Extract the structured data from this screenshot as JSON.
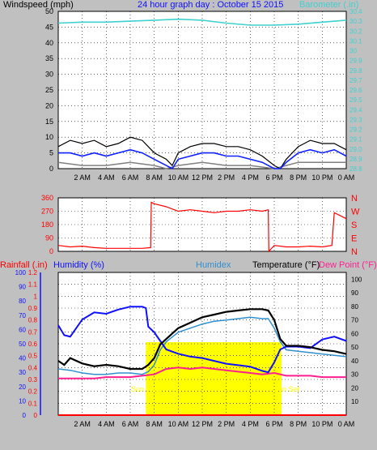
{
  "header": {
    "wind_label": "Windspeed (mph)",
    "day_title": "24 hour graph day : October 15 2015",
    "baro_label": "Barometer (.in)"
  },
  "labels2": {
    "rain": "Rainfall (.in)",
    "humidity": "Humidity (%)",
    "humidex": "Humidex",
    "temperature": "Temperature (°F)",
    "dewpoint": "Dew Point (°F)",
    "sunrise": "Sun Rise",
    "sunset": "Sun Set"
  },
  "colors": {
    "background": "#c0c0c0",
    "plot_bg": "#ffffff",
    "wind_gust": "#000000",
    "wind_avg": "#1020ff",
    "wind_min": "#808080",
    "barometer": "#40d0d0",
    "direction": "#ff0000",
    "temperature": "#000000",
    "humidity": "#1010ff",
    "humidex": "#3090d0",
    "dewpoint": "#ff2090",
    "sunlight": "#ffff00",
    "rain": "#ff0000"
  },
  "chart_data": [
    {
      "id": "wind",
      "type": "line",
      "left_axis": {
        "label": "Windspeed (mph)",
        "ylim": [
          0,
          50
        ],
        "ticks": [
          0,
          5,
          10,
          15,
          20,
          25,
          30,
          35,
          40,
          45,
          50
        ]
      },
      "right_axis": {
        "label": "Barometer (.in)",
        "ylim": [
          28.8,
          30.4
        ],
        "ticks": [
          "28.8",
          "28.9",
          "29.0",
          "29.1",
          "29.2",
          "29.3",
          "29.4",
          "29.5",
          "29.6",
          "29.7",
          "29.8",
          "29.9",
          "30",
          "30.1",
          "30.2",
          "30.3",
          "30.4"
        ]
      },
      "xlim": [
        0,
        24
      ],
      "xticks": [
        "2 AM",
        "4 AM",
        "6 AM",
        "8 AM",
        "10 AM",
        "12 PM",
        "2 PM",
        "4 PM",
        "6 PM",
        "8 PM",
        "10 PM",
        "0 AM"
      ],
      "grid": true,
      "series": [
        {
          "key": "gust",
          "x": [
            0,
            1,
            2,
            3,
            4,
            5,
            6,
            7,
            8,
            9,
            9.5,
            10,
            11,
            12,
            13,
            14,
            15,
            16,
            17,
            18,
            18.5,
            19,
            20,
            21,
            22,
            23,
            24
          ],
          "y": [
            7,
            9,
            8,
            9,
            7,
            8,
            10,
            9,
            5,
            3,
            1,
            5,
            7,
            8,
            8,
            7,
            7,
            6,
            4,
            1,
            0,
            3,
            7,
            9,
            8,
            8,
            6
          ]
        },
        {
          "key": "avg",
          "x": [
            0,
            1,
            2,
            3,
            4,
            5,
            6,
            7,
            8,
            9,
            9.5,
            10,
            11,
            12,
            13,
            14,
            15,
            16,
            17,
            18,
            18.5,
            19,
            20,
            21,
            22,
            23,
            24
          ],
          "y": [
            5,
            5,
            4,
            5,
            4,
            5,
            6,
            5,
            3,
            1,
            0,
            3,
            4,
            5,
            5,
            4,
            4,
            3,
            2,
            0,
            0,
            2,
            5,
            6,
            5,
            6,
            4
          ]
        },
        {
          "key": "min",
          "x": [
            0,
            2,
            4,
            6,
            8,
            9,
            10,
            12,
            14,
            16,
            18,
            19,
            20,
            22,
            24
          ],
          "y": [
            2,
            1,
            1,
            2,
            1,
            0,
            1,
            2,
            1,
            1,
            0,
            1,
            2,
            2,
            2
          ]
        },
        {
          "key": "baro",
          "axis": "right",
          "x": [
            0,
            2,
            4,
            6,
            8,
            10,
            12,
            14,
            16,
            18,
            20,
            22,
            24
          ],
          "y": [
            30.28,
            30.29,
            30.29,
            30.3,
            30.31,
            30.32,
            30.31,
            30.28,
            30.26,
            30.26,
            30.27,
            30.29,
            30.31
          ]
        }
      ]
    },
    {
      "id": "direction",
      "type": "line",
      "left_axis": {
        "ylim": [
          0,
          360
        ],
        "ticks": [
          0,
          45,
          90,
          135,
          180,
          225,
          270,
          315,
          360
        ]
      },
      "right_axis": {
        "ticks": [
          "N",
          "S",
          "E",
          "S",
          "N"
        ],
        "top_to_bottom": [
          "N",
          "W",
          "S",
          "E",
          "N"
        ]
      },
      "xlim": [
        0,
        24
      ],
      "grid": true,
      "series": [
        {
          "key": "dir",
          "x": [
            0,
            1,
            2,
            3,
            4,
            5,
            6,
            7,
            7.7,
            7.75,
            8,
            9,
            10,
            11,
            12,
            13,
            14,
            15,
            16,
            17,
            17.5,
            17.55,
            18,
            19,
            20,
            21,
            22,
            22.8,
            23,
            24
          ],
          "y": [
            40,
            30,
            35,
            25,
            20,
            20,
            20,
            20,
            25,
            330,
            320,
            300,
            270,
            280,
            270,
            260,
            270,
            270,
            280,
            270,
            280,
            0,
            40,
            30,
            30,
            35,
            30,
            40,
            260,
            220
          ]
        }
      ]
    },
    {
      "id": "temperature",
      "type": "line",
      "left_axis": {
        "label": "Rainfall (.in)",
        "ylim": [
          0,
          1.2
        ],
        "ticks": [
          "0",
          "0.1",
          "0.2",
          "0.3",
          "0.4",
          "0.5",
          "0.6",
          "0.7",
          "0.8",
          "0.9",
          "1",
          "1.1",
          "1.2"
        ]
      },
      "left_axis2": {
        "label": "Humidity (%)",
        "ylim": [
          0,
          100
        ],
        "ticks": [
          "0",
          "10",
          "20",
          "30",
          "40",
          "50",
          "60",
          "70",
          "80",
          "90",
          "100"
        ]
      },
      "right_axis": {
        "label": "Temperature (°F)",
        "ylim": [
          0,
          105
        ],
        "ticks": [
          "10",
          "20",
          "30",
          "40",
          "50",
          "60",
          "70",
          "80",
          "90",
          "100"
        ]
      },
      "xlim": [
        0,
        24
      ],
      "xticks": [
        "2 AM",
        "4 AM",
        "6 AM",
        "8 AM",
        "10 AM",
        "12 PM",
        "2 PM",
        "4 PM",
        "6 PM",
        "8 PM",
        "10 PM",
        "0 AM"
      ],
      "grid": true,
      "sunrise_hour": 7.3,
      "sunset_hour": 18.6,
      "series": [
        {
          "key": "temp",
          "axis": "right",
          "x": [
            0,
            0.5,
            1,
            2,
            3,
            4,
            5,
            6,
            7,
            7.5,
            8,
            8.5,
            9,
            10,
            11,
            12,
            13,
            14,
            15,
            16,
            17,
            17.5,
            18,
            18.5,
            19,
            20,
            21,
            22,
            23,
            24
          ],
          "y": [
            40,
            37,
            42,
            38,
            36,
            37,
            36,
            34,
            34,
            37,
            42,
            52,
            56,
            64,
            68,
            72,
            74,
            76,
            77,
            78,
            78,
            77,
            70,
            56,
            51,
            51,
            50,
            48,
            47,
            45
          ]
        },
        {
          "key": "hum",
          "axis": "left2",
          "x": [
            0,
            0.5,
            1,
            2,
            3,
            4,
            5,
            6,
            7,
            7.3,
            7.5,
            8,
            8.5,
            9,
            10,
            11,
            12,
            13,
            14,
            15,
            16,
            17,
            17.5,
            18,
            18.5,
            19,
            20,
            21,
            22,
            23,
            24
          ],
          "y": [
            63,
            56,
            55,
            67,
            72,
            71,
            74,
            76,
            76,
            75,
            62,
            58,
            52,
            46,
            43,
            41,
            40,
            38,
            36,
            35,
            34,
            31,
            30,
            37,
            46,
            48,
            48,
            47,
            53,
            55,
            52
          ]
        },
        {
          "key": "humidex",
          "axis": "right",
          "x": [
            0,
            1,
            2,
            3,
            4,
            5,
            6,
            7,
            7.5,
            8,
            8.5,
            9,
            10,
            11,
            12,
            13,
            14,
            15,
            16,
            17,
            17.5,
            18,
            18.5,
            19,
            20,
            21,
            22,
            23,
            24
          ],
          "y": [
            34,
            33,
            31,
            30,
            30,
            31,
            31,
            30,
            32,
            37,
            48,
            54,
            61,
            64,
            67,
            69,
            70,
            71,
            72,
            71,
            71,
            64,
            54,
            48,
            47,
            46,
            45,
            44,
            43
          ]
        },
        {
          "key": "dew",
          "axis": "right",
          "x": [
            0,
            1,
            2,
            3,
            4,
            5,
            6,
            7,
            8,
            9,
            10,
            11,
            12,
            13,
            14,
            15,
            16,
            17,
            18,
            19,
            20,
            21,
            22,
            23,
            24
          ],
          "y": [
            27,
            27,
            27,
            27,
            28,
            28,
            28,
            29,
            30,
            34,
            35,
            34,
            35,
            34,
            33,
            32,
            31,
            30,
            31,
            29,
            29,
            29,
            28,
            28,
            28
          ]
        },
        {
          "key": "rain",
          "axis": "left",
          "x": [
            0,
            24
          ],
          "y": [
            0,
            0
          ]
        }
      ]
    }
  ]
}
